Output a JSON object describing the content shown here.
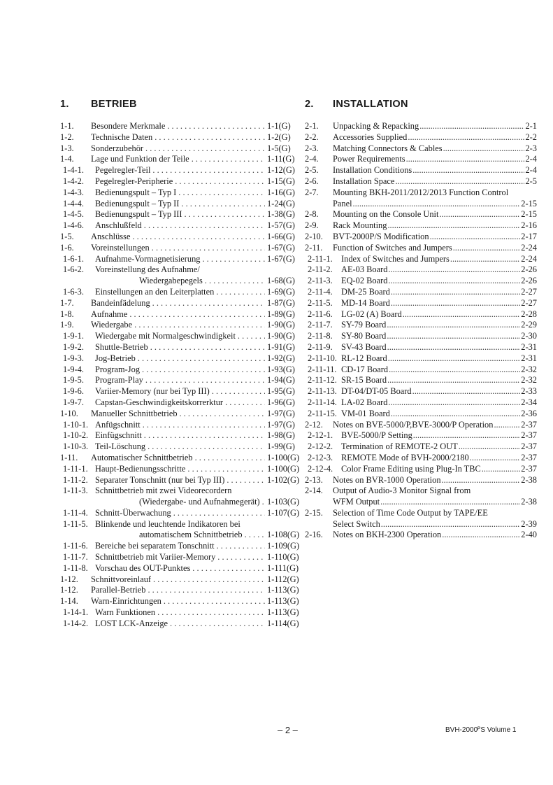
{
  "sections": [
    {
      "number": "1.",
      "title": "BETRIEB",
      "entries": [
        {
          "num": "1-1.",
          "title": "Besondere Merkmale",
          "page": "1-1(G)",
          "level": 1
        },
        {
          "num": "1-2.",
          "title": "Technische Daten",
          "page": "1-2(G)",
          "level": 1
        },
        {
          "num": "1-3.",
          "title": "Sonderzubehör",
          "page": "1-5(G)",
          "level": 1
        },
        {
          "num": "1-4.",
          "title": "Lage und Funktion der Teile",
          "page": "1-11(G)",
          "level": 1
        },
        {
          "num": "1-4-1.",
          "title": "Pegelregler-Teil",
          "page": "1-12(G)",
          "level": 2
        },
        {
          "num": "1-4-2.",
          "title": "Pegelregler-Peripherie",
          "page": "1-15(G)",
          "level": 2
        },
        {
          "num": "1-4-3.",
          "title": "Bedienungspult – Typ I",
          "page": "1-16(G)",
          "level": 2
        },
        {
          "num": "1-4-4.",
          "title": "Bedienungspult – Typ II",
          "page": "1-24(G)",
          "level": 2
        },
        {
          "num": "1-4-5.",
          "title": "Bedienungspult – Typ III",
          "page": "1-38(G)",
          "level": 2
        },
        {
          "num": "1-4-6.",
          "title": "Anschlußfeld",
          "page": "1-57(G)",
          "level": 2
        },
        {
          "num": "1-5.",
          "title": "Anschlüsse",
          "page": "1-66(G)",
          "level": 1
        },
        {
          "num": "1-6.",
          "title": "Voreinstellungen",
          "page": "1-67(G)",
          "level": 1
        },
        {
          "num": "1-6-1.",
          "title": "Aufnahme-Vormagnetisierung",
          "page": "1-67(G)",
          "level": 2
        },
        {
          "num": "1-6-2.",
          "title": "Voreinstellung des Aufnahme/",
          "cont": "Wiedergabepegels",
          "page": "1-68(G)",
          "level": 2
        },
        {
          "num": "1-6-3.",
          "title": "Einstellungen an den Leiterplatten",
          "page": "1-69(G)",
          "level": 2
        },
        {
          "num": "1-7.",
          "title": "Bandeinfädelung",
          "page": "1-87(G)",
          "level": 1
        },
        {
          "num": "1-8.",
          "title": "Aufnahme",
          "page": "1-89(G)",
          "level": 1
        },
        {
          "num": "1-9.",
          "title": "Wiedergabe",
          "page": "1-90(G)",
          "level": 1
        },
        {
          "num": "1-9-1.",
          "title": "Wiedergabe mit Normalgeschwindigkeit",
          "page": "1-90(G)",
          "level": 2
        },
        {
          "num": "1-9-2.",
          "title": "Shuttle-Betrieb",
          "page": "1-91(G)",
          "level": 2
        },
        {
          "num": "1-9-3.",
          "title": "Jog-Betrieb",
          "page": "1-92(G)",
          "level": 2
        },
        {
          "num": "1-9-4.",
          "title": "Program-Jog",
          "page": "1-93(G)",
          "level": 2
        },
        {
          "num": "1-9-5.",
          "title": "Program-Play",
          "page": "1-94(G)",
          "level": 2
        },
        {
          "num": "1-9-6.",
          "title": "Variier-Memory (nur bei Typ III)",
          "page": "1-95(G)",
          "level": 2
        },
        {
          "num": "1-9-7.",
          "title": "Capstan-Geschwindigkeitskorrerktur",
          "page": "1-96(G)",
          "level": 2
        },
        {
          "num": "1-10.",
          "title": "Manueller Schnittbetrieb",
          "page": "1-97(G)",
          "level": 1
        },
        {
          "num": "1-10-1.",
          "title": "Anfügschnitt",
          "page": "1-97(G)",
          "level": 2
        },
        {
          "num": "1-10-2.",
          "title": "Einfügschnitt",
          "page": "1-98(G)",
          "level": 2
        },
        {
          "num": "1-10-3.",
          "title": "Teil-Löschung",
          "page": "1-99(G)",
          "level": 2
        },
        {
          "num": "1-11.",
          "title": "Automatischer Schnittbetrieb",
          "page": "1-100(G)",
          "level": 1
        },
        {
          "num": "1-11-1.",
          "title": "Haupt-Bedienungsschritte",
          "page": "1-100(G)",
          "level": 2
        },
        {
          "num": "1-11-2.",
          "title": "Separater Tonschnitt (nur bei Typ III)",
          "page": "1-102(G)",
          "level": 2
        },
        {
          "num": "1-11-3.",
          "title": "Schnittbetrieb mit zwei Videorecordern",
          "cont": "(Wiedergabe- und Aufnahmegerät)",
          "page": "1-103(G)",
          "level": 2
        },
        {
          "num": "1-11-4.",
          "title": "Schnitt-Überwachung",
          "page": "1-107(G)",
          "level": 2
        },
        {
          "num": "1-11-5.",
          "title": "Blinkende und leuchtende Indikatoren bei",
          "cont": "automatischem Schnittbetrieb",
          "page": "1-108(G)",
          "level": 2
        },
        {
          "num": "1-11-6.",
          "title": "Bereiche bei separatem Tonschnitt",
          "page": "1-109(G)",
          "level": 2
        },
        {
          "num": "1-11-7.",
          "title": "Schnittbetrieb mit Variier-Memory",
          "page": "1-110(G)",
          "level": 2
        },
        {
          "num": "1-11-8.",
          "title": "Vorschau des OUT-Punktes",
          "page": "1-111(G)",
          "level": 2
        },
        {
          "num": "1-12.",
          "title": "Schnittvoreinlauf",
          "page": "1-112(G)",
          "level": 1
        },
        {
          "num": "1-12.",
          "title": "Parallel-Betrieb",
          "page": "1-113(G)",
          "level": 1
        },
        {
          "num": "1-14.",
          "title": "Warn-Einrichtungen",
          "page": "1-113(G)",
          "level": 1
        },
        {
          "num": "1-14-1.",
          "title": "Warn Funktionen",
          "page": "1-113(G)",
          "level": 2
        },
        {
          "num": "1-14-2.",
          "title": "LOST LCK-Anzeige",
          "page": "1-114(G)",
          "level": 2
        }
      ]
    },
    {
      "number": "2.",
      "title": "INSTALLATION",
      "entries": [
        {
          "num": "2-1.",
          "title": "Unpacking & Repacking",
          "page": "2-1",
          "level": 1
        },
        {
          "num": "2-2.",
          "title": "Accessories Supplied",
          "page": "2-2",
          "level": 1
        },
        {
          "num": "2-3.",
          "title": "Matching Connectors & Cables",
          "page": "2-3",
          "level": 1
        },
        {
          "num": "2-4.",
          "title": "Power Requirements",
          "page": "2-4",
          "level": 1
        },
        {
          "num": "2-5.",
          "title": "Installation Conditions",
          "page": "2-4",
          "level": 1
        },
        {
          "num": "2-6.",
          "title": "Installation Space",
          "page": "2-5",
          "level": 1
        },
        {
          "num": "2-7.",
          "title": "Mounting BKH-2011/2012/2013 Function Control",
          "cont": "Panel",
          "page": "2-15",
          "level": 1
        },
        {
          "num": "2-8.",
          "title": "Mounting on the Console Unit",
          "page": "2-15",
          "level": 1
        },
        {
          "num": "2-9.",
          "title": "Rack Mounting",
          "page": "2-16",
          "level": 1
        },
        {
          "num": "2-10.",
          "title": "BVT-2000P/S Modification",
          "page": "2-17",
          "level": 1
        },
        {
          "num": "2-11.",
          "title": "Function of Switches and Jumpers",
          "page": "2-24",
          "level": 1
        },
        {
          "num": "2-11-1.",
          "title": "Index of Switches and Jumpers",
          "page": "2-24",
          "level": 2
        },
        {
          "num": "2-11-2.",
          "title": "AE-03 Board",
          "page": "2-26",
          "level": 2
        },
        {
          "num": "2-11-3.",
          "title": "EQ-02 Board",
          "page": "2-26",
          "level": 2
        },
        {
          "num": "2-11-4.",
          "title": "DM-25 Board",
          "page": "2-27",
          "level": 2
        },
        {
          "num": "2-11-5.",
          "title": "MD-14 Board",
          "page": "2-27",
          "level": 2
        },
        {
          "num": "2-11-6.",
          "title": "LG-02 (A) Board",
          "page": "2-28",
          "level": 2
        },
        {
          "num": "2-11-7.",
          "title": "SY-79 Board",
          "page": "2-29",
          "level": 2
        },
        {
          "num": "2-11-8.",
          "title": "SY-80 Board",
          "page": "2-30",
          "level": 2
        },
        {
          "num": "2-11-9.",
          "title": "SV-43 Board",
          "page": "2-31",
          "level": 2
        },
        {
          "num": "2-11-10.",
          "title": "RL-12 Board",
          "page": "2-31",
          "level": 2
        },
        {
          "num": "2-11-11.",
          "title": "CD-17 Board",
          "page": "2-32",
          "level": 2
        },
        {
          "num": "2-11-12.",
          "title": "SR-15 Board",
          "page": "2-32",
          "level": 2
        },
        {
          "num": "2-11-13.",
          "title": "DT-04/DT-05 Board",
          "page": "2-33",
          "level": 2
        },
        {
          "num": "2-11-14.",
          "title": "LA-02 Board",
          "page": "2-34",
          "level": 2
        },
        {
          "num": "2-11-15.",
          "title": "VM-01 Board",
          "page": "2-36",
          "level": 2
        },
        {
          "num": "2-12.",
          "title": "Notes on BVE-5000/P,BVE-3000/P Operation",
          "page": "2-37",
          "level": 1
        },
        {
          "num": "2-12-1.",
          "title": "BVE-5000/P Setting",
          "page": "2-37",
          "level": 2
        },
        {
          "num": "2-12-2.",
          "title": "Termination of REMOTE-2 OUT",
          "page": "2-37",
          "level": 2
        },
        {
          "num": "2-12-3.",
          "title": "REMOTE Mode of BVH-2000/2180",
          "page": "2-37",
          "level": 2
        },
        {
          "num": "2-12-4.",
          "title": "Color Frame Editing using Plug-In TBC",
          "page": "2-37",
          "level": 2
        },
        {
          "num": "2-13.",
          "title": "Notes on BVR-1000 Operation",
          "page": "2-38",
          "level": 1
        },
        {
          "num": "2-14.",
          "title": "Output of Audio-3 Monitor Signal from",
          "cont": "WFM Output",
          "page": "2-38",
          "level": 1
        },
        {
          "num": "2-15.",
          "title": "Selection of Time Code Output by TAPE/EE",
          "cont": "Select Switch",
          "page": "2-39",
          "level": 1
        },
        {
          "num": "2-16.",
          "title": "Notes on BKH-2300 Operation",
          "page": "2-40",
          "level": 1
        }
      ]
    }
  ],
  "footer": {
    "page": "– 2 –",
    "title": "BVH-2000ᴾS Volume 1"
  }
}
